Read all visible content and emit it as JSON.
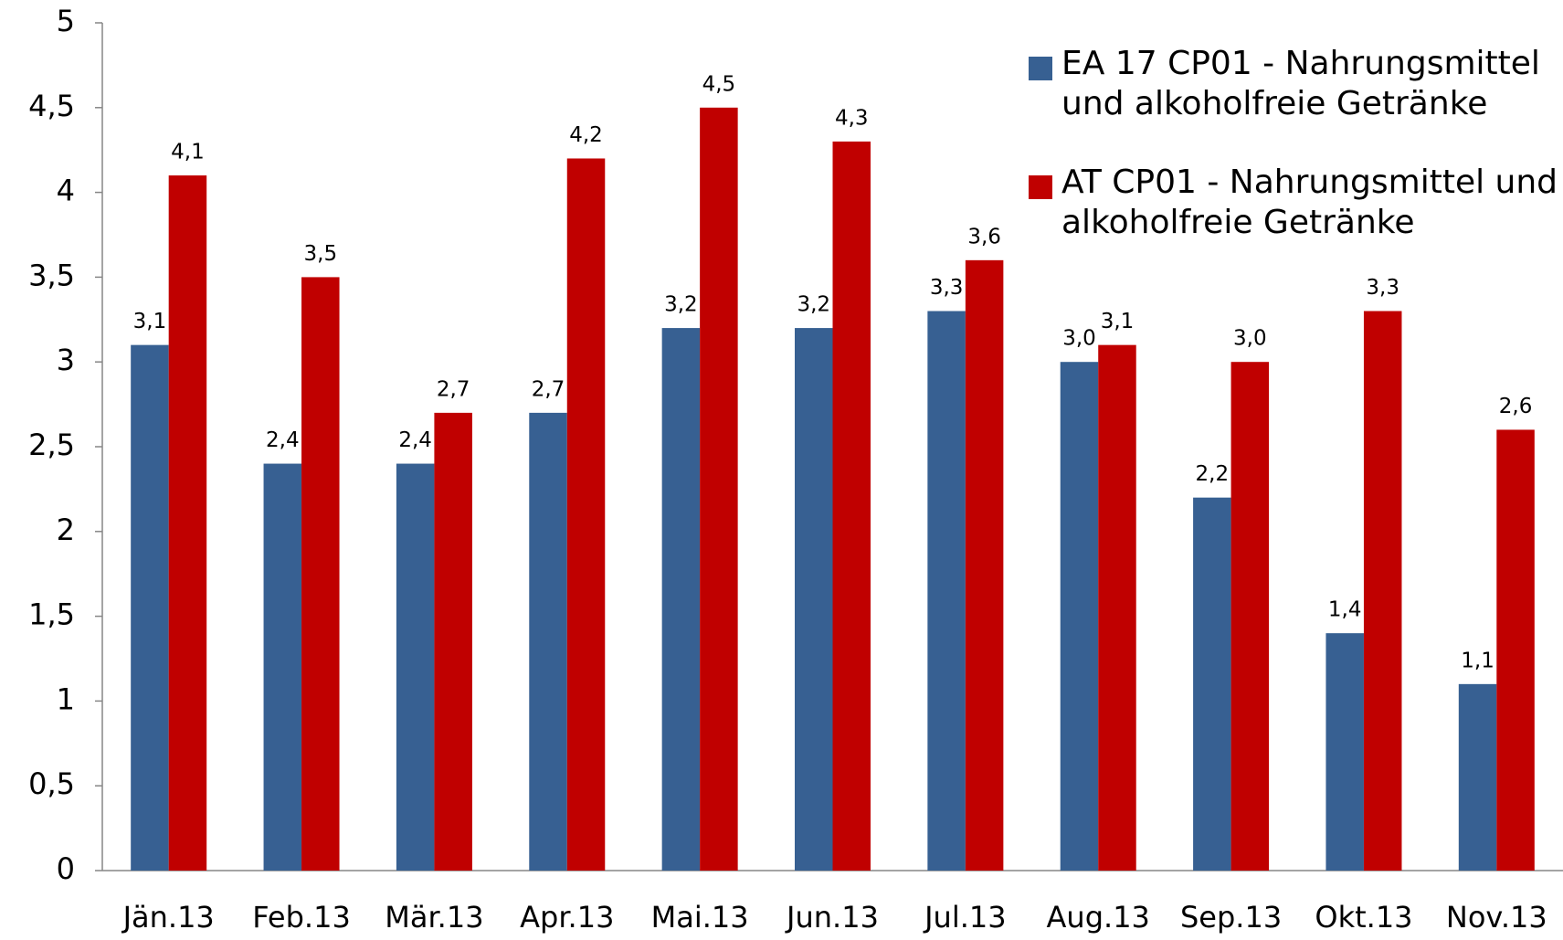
{
  "chart_data": {
    "type": "bar",
    "categories": [
      "Jän.13",
      "Feb.13",
      "Mär.13",
      "Apr.13",
      "Mai.13",
      "Jun.13",
      "Jul.13",
      "Aug.13",
      "Sep.13",
      "Okt.13",
      "Nov.13"
    ],
    "series": [
      {
        "name": "EA 17 CP01 - Nahrungsmittel und alkoholfreie Getränke",
        "color": "#376092",
        "values": [
          3.1,
          2.4,
          2.4,
          2.7,
          3.2,
          3.2,
          3.3,
          3.0,
          2.2,
          1.4,
          1.1
        ],
        "value_labels": [
          "3,1",
          "2,4",
          "2,4",
          "2,7",
          "3,2",
          "3,2",
          "3,3",
          "3,0",
          "2,2",
          "1,4",
          "1,1"
        ]
      },
      {
        "name": "AT CP01 - Nahrungsmittel und alkoholfreie Getränke",
        "color": "#c00000",
        "values": [
          4.1,
          3.5,
          2.7,
          4.2,
          4.5,
          4.3,
          3.6,
          3.1,
          3.0,
          3.3,
          2.6
        ],
        "value_labels": [
          "4,1",
          "3,5",
          "2,7",
          "4,2",
          "4,5",
          "4,3",
          "3,6",
          "3,1",
          "3,0",
          "3,3",
          "2,6"
        ]
      }
    ],
    "ylim": [
      0,
      5
    ],
    "yticks": [
      0,
      {
        "value": 0.5,
        "label": "0,5"
      },
      1,
      {
        "value": 1.5,
        "label": "1,5"
      },
      2,
      {
        "value": 2.5,
        "label": "2,5"
      },
      3,
      {
        "value": 3.5,
        "label": "3,5"
      },
      4,
      {
        "value": 4.5,
        "label": "4,5"
      },
      5
    ],
    "legend": "top-right"
  }
}
